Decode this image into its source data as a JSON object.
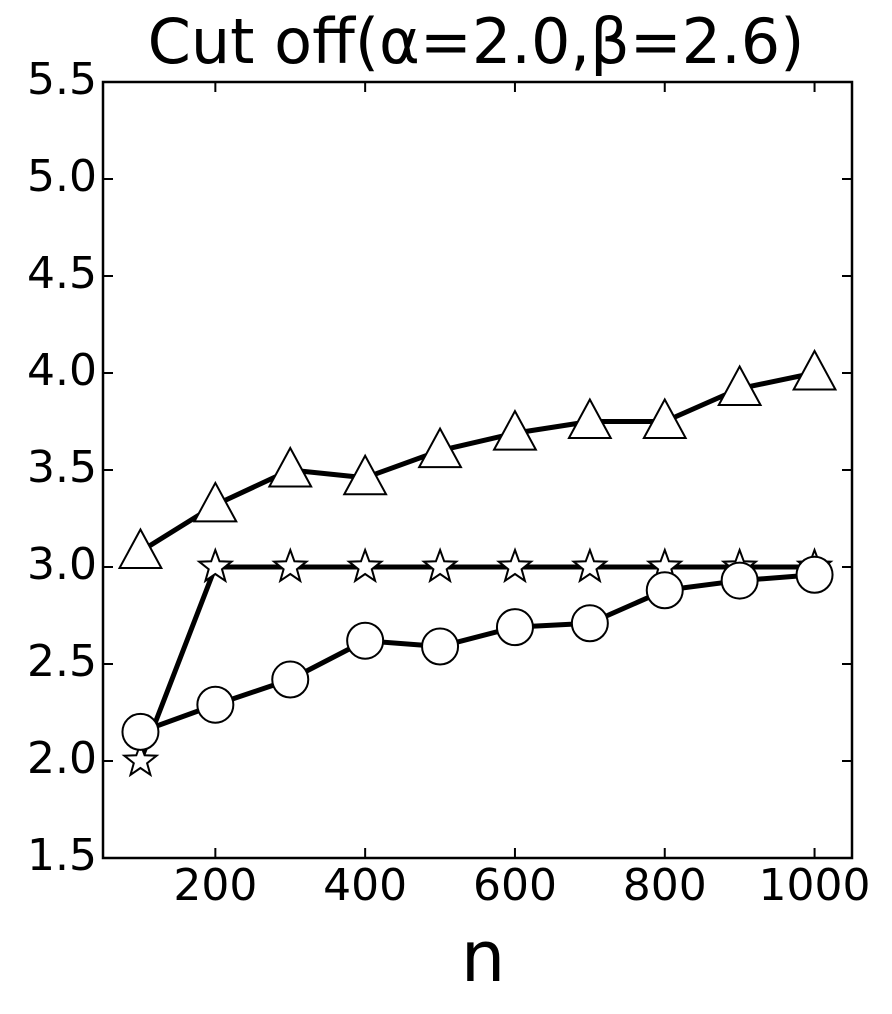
{
  "chart_data": {
    "type": "line",
    "title": "Cut off(α=2.0,β=2.6)",
    "x_label": "n",
    "x": [
      100,
      200,
      300,
      400,
      500,
      600,
      700,
      800,
      900,
      1000
    ],
    "series": [
      {
        "marker": "triangle",
        "color": "#000000",
        "values": [
          3.08,
          3.32,
          3.5,
          3.46,
          3.6,
          3.69,
          3.75,
          3.75,
          3.92,
          4.0
        ]
      },
      {
        "marker": "star",
        "color": "#000000",
        "values": [
          2.0,
          3.0,
          3.0,
          3.0,
          3.0,
          3.0,
          3.0,
          3.0,
          3.0,
          3.0
        ]
      },
      {
        "marker": "circle",
        "color": "#000000",
        "values": [
          2.15,
          2.29,
          2.42,
          2.62,
          2.59,
          2.69,
          2.71,
          2.88,
          2.93,
          2.96
        ]
      }
    ],
    "xlim": [
      50,
      1050
    ],
    "xticks": [
      200,
      400,
      600,
      800,
      1000
    ],
    "ylim": [
      1.5,
      5.5
    ],
    "yticks": [
      1.5,
      {
        "value": 2,
        "label": "2.0"
      },
      2.5,
      {
        "value": 3,
        "label": "3.0"
      },
      3.5,
      {
        "value": 4,
        "label": "4.0"
      },
      4.5,
      {
        "value": 5,
        "label": "5.0"
      },
      5.5
    ],
    "grid": false
  }
}
